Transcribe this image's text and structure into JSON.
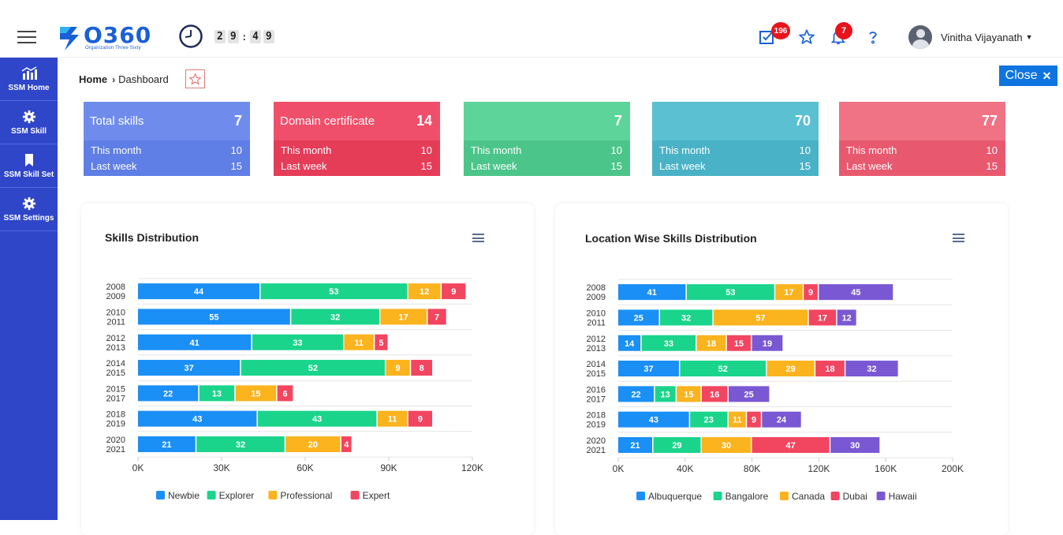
{
  "app": {
    "logo_text": "O360",
    "logo_sub": "Organization Three Sixty",
    "timer": [
      "2",
      "9",
      "4",
      "9"
    ],
    "tasks_badge": "196",
    "notif_badge": "7",
    "user_name": "Vinitha Vijayanath"
  },
  "sidebar": {
    "items": [
      {
        "label": "SSM Home",
        "icon": "chart-icon"
      },
      {
        "label": "SSM Skill",
        "icon": "gear-icon"
      },
      {
        "label": "SSM Skill Set",
        "icon": "bookmark-icon"
      },
      {
        "label": "SSM Settings",
        "icon": "settings-icon"
      }
    ]
  },
  "breadcrumb": {
    "home": "Home",
    "current": "Dashboard"
  },
  "close_label": "Close",
  "cards": [
    {
      "title": "Total skills",
      "value": "7",
      "r1_label": "This month",
      "r1_value": "10",
      "r2_label": "Last week",
      "r2_value": "15",
      "head_color": "#6f8ced",
      "foot_color": "#5f7ee6"
    },
    {
      "title": "Domain certificate",
      "value": "14",
      "r1_label": "This month",
      "r1_value": "10",
      "r2_label": "Last week",
      "r2_value": "15",
      "head_color": "#ef4f6a",
      "foot_color": "#e53c58"
    },
    {
      "title": "",
      "value": "7",
      "r1_label": "This month",
      "r1_value": "10",
      "r2_label": "Last week",
      "r2_value": "15",
      "head_color": "#5dd49a",
      "foot_color": "#4cc58a"
    },
    {
      "title": "",
      "value": "70",
      "r1_label": "This month",
      "r1_value": "10",
      "r2_label": "Last week",
      "r2_value": "15",
      "head_color": "#5ac0d2",
      "foot_color": "#4ab2c6"
    },
    {
      "title": "",
      "value": "77",
      "r1_label": "This month",
      "r1_value": "10",
      "r2_label": "Last week",
      "r2_value": "15",
      "head_color": "#ef7385",
      "foot_color": "#e8596f"
    }
  ],
  "chart_data": [
    {
      "type": "bar",
      "orientation": "horizontal",
      "stacked": true,
      "title": "Skills Distribution",
      "categories": [
        [
          "2008",
          "2009"
        ],
        [
          "2010",
          "2011"
        ],
        [
          "2012",
          "2013"
        ],
        [
          "2014",
          "2015"
        ],
        [
          "2015",
          "2017"
        ],
        [
          "2018",
          "2019"
        ],
        [
          "2020",
          "2021"
        ]
      ],
      "series": [
        {
          "name": "Newbie",
          "color": "#1a8ff5",
          "values": [
            44,
            55,
            41,
            37,
            22,
            43,
            21
          ]
        },
        {
          "name": "Explorer",
          "color": "#1bd48c",
          "values": [
            53,
            32,
            33,
            52,
            13,
            43,
            32
          ]
        },
        {
          "name": "Professional",
          "color": "#fbb31e",
          "values": [
            12,
            17,
            11,
            9,
            15,
            11,
            20
          ]
        },
        {
          "name": "Expert",
          "color": "#f24560",
          "values": [
            9,
            7,
            5,
            8,
            6,
            9,
            4
          ]
        }
      ],
      "scale": 1000,
      "xlim": [
        0,
        120
      ],
      "ticks": [
        "0K",
        "30K",
        "60K",
        "90K",
        "120K"
      ],
      "legend": "bottom"
    },
    {
      "type": "bar",
      "orientation": "horizontal",
      "stacked": true,
      "title": "Location Wise Skills Distribution",
      "categories": [
        [
          "2008",
          "2009"
        ],
        [
          "2010",
          "2011"
        ],
        [
          "2012",
          "2013"
        ],
        [
          "2014",
          "2015"
        ],
        [
          "2016",
          "2017"
        ],
        [
          "2018",
          "2019"
        ],
        [
          "2020",
          "2021"
        ]
      ],
      "series": [
        {
          "name": "Albuquerque",
          "color": "#1a8ff5",
          "values": [
            41,
            25,
            14,
            37,
            22,
            43,
            21
          ]
        },
        {
          "name": "Bangalore",
          "color": "#1bd48c",
          "values": [
            53,
            32,
            33,
            52,
            13,
            23,
            29
          ]
        },
        {
          "name": "Canada",
          "color": "#fbb31e",
          "values": [
            17,
            57,
            18,
            29,
            15,
            11,
            30
          ]
        },
        {
          "name": "Dubai",
          "color": "#f24560",
          "values": [
            9,
            17,
            15,
            18,
            16,
            9,
            47
          ]
        },
        {
          "name": "Hawaii",
          "color": "#7a58d4",
          "values": [
            45,
            12,
            19,
            32,
            25,
            24,
            30
          ]
        }
      ],
      "scale": 1000,
      "xlim": [
        0,
        200
      ],
      "ticks": [
        "0K",
        "40K",
        "80K",
        "120K",
        "160K",
        "200K"
      ],
      "legend": "bottom"
    }
  ]
}
